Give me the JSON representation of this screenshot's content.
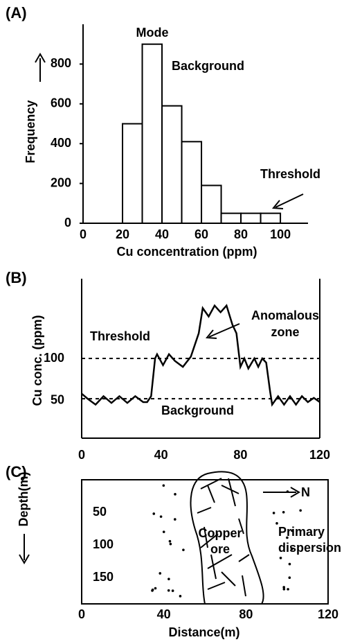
{
  "chart_data": [
    {
      "type": "histogram",
      "panel_label": "(A)",
      "xlabel": "Cu concentration (ppm)",
      "ylabel": "Frequency",
      "bins": [
        20,
        30,
        40,
        50,
        60,
        70,
        80,
        90,
        100
      ],
      "values": [
        500,
        900,
        590,
        410,
        190,
        50,
        50,
        50
      ],
      "color": "#ffffff",
      "xlim": [
        0,
        114
      ],
      "xticks": [
        0,
        20,
        40,
        60,
        80,
        100
      ],
      "ylim": [
        0,
        1000
      ],
      "yticks": [
        0,
        200,
        400,
        600,
        800
      ],
      "mode_label": "Mode",
      "background_label": "Background",
      "threshold_label": "Threshold"
    },
    {
      "type": "line",
      "panel_label": "(B)",
      "ylabel": "Cu conc. (ppm)",
      "x": [
        0,
        3,
        7,
        11,
        15,
        19,
        23,
        27,
        31,
        33,
        35,
        37,
        38,
        41,
        44,
        47,
        51,
        55,
        59,
        61,
        64,
        67,
        70,
        73,
        76,
        78,
        80,
        82,
        84,
        87,
        89,
        91,
        93,
        95,
        96,
        99,
        102,
        105,
        108,
        111,
        114,
        117,
        120
      ],
      "series": [
        {
          "name": null,
          "color": "#000000",
          "values": [
            58,
            52,
            45,
            55,
            47,
            55,
            47,
            55,
            48,
            48,
            55,
            100,
            105,
            92,
            105,
            97,
            90,
            102,
            130,
            160,
            150,
            163,
            155,
            163,
            140,
            130,
            90,
            100,
            88,
            100,
            90,
            100,
            95,
            60,
            45,
            55,
            45,
            55,
            45,
            55,
            48,
            53,
            48
          ]
        }
      ],
      "xlim": [
        0,
        120
      ],
      "xticks": [
        0,
        40,
        80,
        120
      ],
      "ylim": [
        5,
        195
      ],
      "yticks": [
        50,
        100
      ],
      "threshold": 100,
      "threshold_label": "Threshold",
      "background": 52,
      "background_label": "Background",
      "anomaly_label": [
        "Anomalous",
        "zone"
      ]
    },
    {
      "type": "section",
      "panel_label": "(C)",
      "xlabel": "Distance(m)",
      "ylabel": "Depth(m)",
      "xlim": [
        0,
        120
      ],
      "xticks": [
        0,
        40,
        80,
        120
      ],
      "ylim": [
        0,
        190
      ],
      "yticks": [
        50,
        100,
        150
      ],
      "north_label": "N",
      "ore_label": [
        "Copper",
        "ore"
      ],
      "dispersion_label": [
        "Primary",
        "dispersion"
      ]
    }
  ]
}
